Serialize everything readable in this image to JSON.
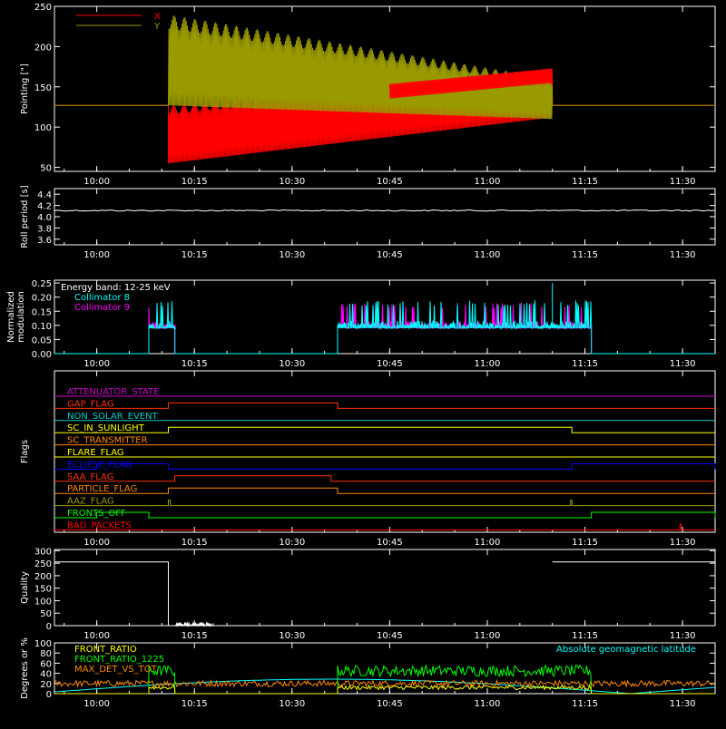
{
  "x_ticks": [
    "10:00",
    "10:15",
    "10:30",
    "10:45",
    "11:00",
    "11:15",
    "11:30"
  ],
  "chart_data": [
    {
      "type": "line",
      "ylabel": "Pointing [\"]",
      "yticks": [
        50,
        100,
        150,
        200,
        250
      ],
      "ylim": [
        45,
        250
      ],
      "legend": {
        "placement": "top-left",
        "items": [
          {
            "name": "X",
            "color": "#ff0000"
          },
          {
            "name": "Y",
            "color": "#999900"
          }
        ]
      },
      "series": [
        {
          "name": "X",
          "color": "#ff0000",
          "baseline": 127,
          "envelope_start": "10:11",
          "envelope_end": "11:10",
          "envelope_upper_start": 127,
          "envelope_upper_end": 173,
          "envelope_lower_start": 55,
          "envelope_lower_end": 112
        },
        {
          "name": "Y",
          "color": "#999900",
          "baseline": 127,
          "envelope_start": "10:11",
          "envelope_end": "11:10",
          "envelope_upper_start": 240,
          "envelope_upper_end": 160,
          "envelope_lower_start": 127,
          "envelope_lower_end": 110
        }
      ]
    },
    {
      "type": "line",
      "ylabel": "Roll period [s]",
      "yticks": [
        "3.6",
        "3.8",
        "4.0",
        "4.2",
        "4.4"
      ],
      "ylim": [
        3.5,
        4.5
      ],
      "series": [
        {
          "name": "",
          "color": "#ffffff",
          "value": 4.11
        }
      ]
    },
    {
      "type": "line",
      "ylabel_lines": [
        "Normalized",
        "modulation"
      ],
      "yticks": [
        "0.00",
        "0.05",
        "0.10",
        "0.15",
        "0.20",
        "0.25"
      ],
      "ylim": [
        0,
        0.26
      ],
      "annotation": "Energy band: 12-25 keV",
      "legend": {
        "placement": "top-left",
        "items": [
          {
            "name": "Collimator 8",
            "color": "#00ffff"
          },
          {
            "name": "Collimator 9",
            "color": "#ff00ff"
          }
        ]
      },
      "active_intervals": [
        [
          "10:08",
          "10:12"
        ],
        [
          "10:37",
          "11:16"
        ]
      ],
      "base_value": 0.09,
      "peak_value": 0.25
    },
    {
      "type": "line",
      "ylabel": "Flags",
      "flags": [
        {
          "name": "ATTENUATOR_STATE",
          "color": "#cc00cc",
          "segments": []
        },
        {
          "name": "GAP_FLAG",
          "color": "#ff3300",
          "segments": [
            [
              "10:11",
              "10:37"
            ]
          ]
        },
        {
          "name": "NON_SOLAR_EVENT",
          "color": "#00cccc",
          "segments": []
        },
        {
          "name": "SC_IN_SUNLIGHT",
          "color": "#ffff00",
          "segments": [
            [
              "10:11",
              "11:13"
            ]
          ]
        },
        {
          "name": "SC_TRANSMITTER",
          "color": "#ff8800",
          "segments": []
        },
        {
          "name": "FLARE_FLAG",
          "color": "#ffff00",
          "segments": []
        },
        {
          "name": "ECLIPSE_FLAG",
          "color": "#0000ff",
          "segments": [
            [
              "10:00",
              "10:11"
            ],
            [
              "11:13",
              "11:35"
            ]
          ]
        },
        {
          "name": "SAA_FLAG",
          "color": "#ff3300",
          "segments": [
            [
              "10:12",
              "10:36"
            ]
          ]
        },
        {
          "name": "PARTICLE_FLAG",
          "color": "#ff8800",
          "segments": [
            [
              "10:11",
              "10:37"
            ]
          ]
        },
        {
          "name": "AAZ_FLAG",
          "color": "#999900",
          "segments": [
            [
              "10:11",
              "10:11.3"
            ],
            [
              "11:12.8",
              "11:13"
            ]
          ]
        },
        {
          "name": "FRONTS_OFF",
          "color": "#00ff00",
          "segments": [
            [
              "10:00",
              "10:08"
            ],
            [
              "11:16",
              "11:35"
            ]
          ]
        },
        {
          "name": "BAD_PACKETS",
          "color": "#ff0000",
          "segments": [
            [
              "11:29.6",
              "11:29.8"
            ]
          ]
        }
      ]
    },
    {
      "type": "line",
      "ylabel": "Quality",
      "yticks": [
        0,
        50,
        100,
        150,
        200,
        250,
        300
      ],
      "ylim": [
        0,
        305
      ],
      "series": [
        {
          "name": "",
          "color": "#ffffff",
          "high_value": 255,
          "high_intervals": [
            [
              "09:53",
              "10:11"
            ],
            [
              "11:10",
              "11:35"
            ]
          ]
        }
      ]
    },
    {
      "type": "line",
      "ylabel": "Degrees or %",
      "yticks": [
        0,
        20,
        40,
        60,
        80,
        100
      ],
      "ylim": [
        0,
        100
      ],
      "annotation": "Absolute geomagnetic latitude",
      "annotation_color": "#00ffff",
      "legend": {
        "placement": "top-left",
        "items": [
          {
            "name": "FRONT_RATIO",
            "color": "#ffff00"
          },
          {
            "name": "FRONT_RATIO_1225",
            "color": "#00ff00"
          },
          {
            "name": "MAX_DET_VS_TOT",
            "color": "#ff8800"
          }
        ]
      },
      "series": [
        {
          "name": "FRONT_RATIO",
          "color": "#ffff00",
          "level": 12
        },
        {
          "name": "FRONT_RATIO_1225",
          "color": "#00ff00",
          "level": 45,
          "intervals": [
            [
              "10:08",
              "10:12"
            ],
            [
              "10:37",
              "11:16"
            ]
          ]
        },
        {
          "name": "MAX_DET_VS_TOT",
          "color": "#ff8800",
          "level": 20
        },
        {
          "name": "Absolute geomagnetic latitude",
          "color": "#00ffff",
          "max": 30
        }
      ]
    }
  ]
}
